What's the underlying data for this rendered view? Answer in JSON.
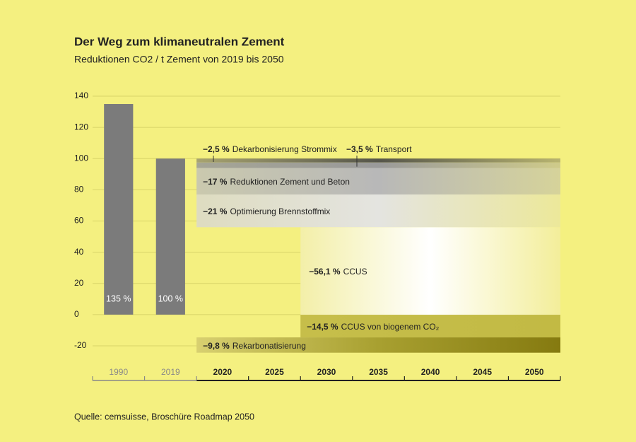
{
  "chart_data": {
    "type": "bar",
    "title": "Der Weg zum klimaneutralen Zement",
    "subtitle": "Reduktionen CO2 / t Zement von 2019 bis 2050",
    "source": "Quelle: cemsuisse, Broschüre Roadmap 2050",
    "categories": [
      "1990",
      "2019",
      "2020",
      "2025",
      "2030",
      "2035",
      "2040",
      "2045",
      "2050"
    ],
    "values": [
      135,
      100,
      null,
      null,
      null,
      null,
      null,
      null,
      null
    ],
    "value_labels": [
      "135 %",
      "100 %",
      null,
      null,
      null,
      null,
      null,
      null,
      null
    ],
    "color": "#7b7b7b",
    "ylim": [
      -20,
      140
    ],
    "yticks": [
      -20,
      0,
      20,
      40,
      60,
      80,
      100,
      120,
      140
    ],
    "grid": true,
    "reductions": [
      {
        "name": "Dekarbonisierung Strommix",
        "value": -2.5,
        "value_label": "−2,5 %",
        "from": "2020",
        "label_position": "above",
        "colors": [
          "#a8a470",
          "#55554a",
          "#b8b470"
        ]
      },
      {
        "name": "Transport",
        "value": -3.5,
        "value_label": "−3,5 %",
        "from": "2020",
        "label_position": "above",
        "colors": [
          "#a5a595",
          "#9a9a9a",
          "#cfcb8a"
        ]
      },
      {
        "name": "Reduktionen Zement und Beton",
        "value": -17,
        "value_label": "−17 %",
        "from": "2020",
        "label_position": "inside",
        "colors": [
          "#cac9ae",
          "#b8b8b8",
          "#d6d39a"
        ]
      },
      {
        "name": "Optimierung Brennstoffmix",
        "value": -21,
        "value_label": "−21 %",
        "from": "2020",
        "label_position": "inside",
        "colors": [
          "#dedcc0",
          "#e4e4e0",
          "#ece89a"
        ]
      },
      {
        "name": "CCUS",
        "value": -56.1,
        "value_label": "−56,1 %",
        "from": "2030",
        "label_position": "inside",
        "colors": [
          "#f3efa8",
          "#ffffff",
          "#f3ee9a"
        ]
      },
      {
        "name": "CCUS von biogenem CO₂",
        "value": -14.5,
        "value_label": "−14,5 %",
        "from": "2030",
        "label_position": "inside",
        "colors": [
          "#c6be4a",
          "#c4bc48",
          "#c2ba44"
        ]
      },
      {
        "name": "Rekarbonatisierung",
        "value": -9.8,
        "value_label": "−9,8 %",
        "from": "2020",
        "label_position": "inside",
        "colors": [
          "#d8d070",
          "#a8a030",
          "#857a10"
        ]
      }
    ]
  }
}
